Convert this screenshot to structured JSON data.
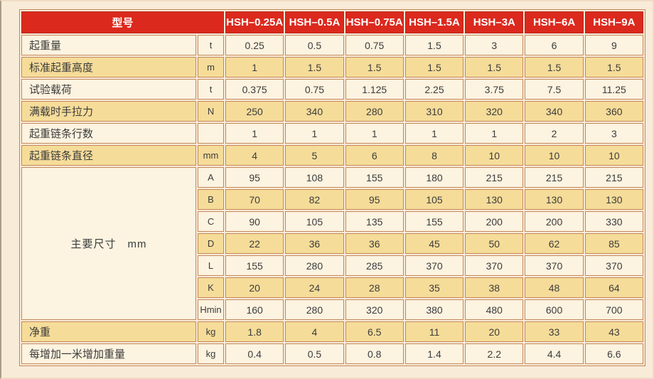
{
  "colors": {
    "page_background": "#f8ebd8",
    "header_red": "#dc291d",
    "row_cream": "#fcf3e0",
    "row_yellow": "#f6dc99",
    "grid_border": "#c4885c",
    "header_text": "#ffffff",
    "body_text": "#3c3c3c"
  },
  "table": {
    "header": {
      "title": "型号",
      "columns": [
        "HSH–0.25A",
        "HSH–0.5A",
        "HSH–0.75A",
        "HSH–1.5A",
        "HSH–3A",
        "HSH–6A",
        "HSH–9A"
      ]
    },
    "spec_rows_top": [
      {
        "label": "起重量",
        "unit": "t",
        "values": [
          "0.25",
          "0.5",
          "0.75",
          "1.5",
          "3",
          "6",
          "9"
        ]
      },
      {
        "label": "标准起重高度",
        "unit": "m",
        "values": [
          "1",
          "1.5",
          "1.5",
          "1.5",
          "1.5",
          "1.5",
          "1.5"
        ]
      },
      {
        "label": "试验载荷",
        "unit": "t",
        "values": [
          "0.375",
          "0.75",
          "1.125",
          "2.25",
          "3.75",
          "7.5",
          "11.25"
        ]
      },
      {
        "label": "满载时手拉力",
        "unit": "N",
        "values": [
          "250",
          "340",
          "280",
          "310",
          "320",
          "340",
          "360"
        ]
      },
      {
        "label": "起重链条行数",
        "unit": "",
        "values": [
          "1",
          "1",
          "1",
          "1",
          "1",
          "2",
          "3"
        ]
      },
      {
        "label": "起重链条直径",
        "unit": "mm",
        "values": [
          "4",
          "5",
          "6",
          "8",
          "10",
          "10",
          "10"
        ]
      }
    ],
    "dimensions": {
      "group_label": "主要尺寸　mm",
      "rows": [
        {
          "sub": "A",
          "values": [
            "95",
            "108",
            "155",
            "180",
            "215",
            "215",
            "215"
          ]
        },
        {
          "sub": "B",
          "values": [
            "70",
            "82",
            "95",
            "105",
            "130",
            "130",
            "130"
          ]
        },
        {
          "sub": "C",
          "values": [
            "90",
            "105",
            "135",
            "155",
            "200",
            "200",
            "330"
          ]
        },
        {
          "sub": "D",
          "values": [
            "22",
            "36",
            "36",
            "45",
            "50",
            "62",
            "85"
          ]
        },
        {
          "sub": "L",
          "values": [
            "155",
            "280",
            "285",
            "370",
            "370",
            "370",
            "370"
          ]
        },
        {
          "sub": "K",
          "values": [
            "20",
            "24",
            "28",
            "35",
            "38",
            "48",
            "64"
          ]
        },
        {
          "sub": "Hmin",
          "values": [
            "160",
            "280",
            "320",
            "380",
            "480",
            "600",
            "700"
          ]
        }
      ]
    },
    "spec_rows_bottom": [
      {
        "label": "净重",
        "unit": "kg",
        "values": [
          "1.8",
          "4",
          "6.5",
          "11",
          "20",
          "33",
          "43"
        ]
      },
      {
        "label": "每增加一米增加重量",
        "unit": "kg",
        "values": [
          "0.4",
          "0.5",
          "0.8",
          "1.4",
          "2.2",
          "4.4",
          "6.6"
        ]
      }
    ]
  }
}
